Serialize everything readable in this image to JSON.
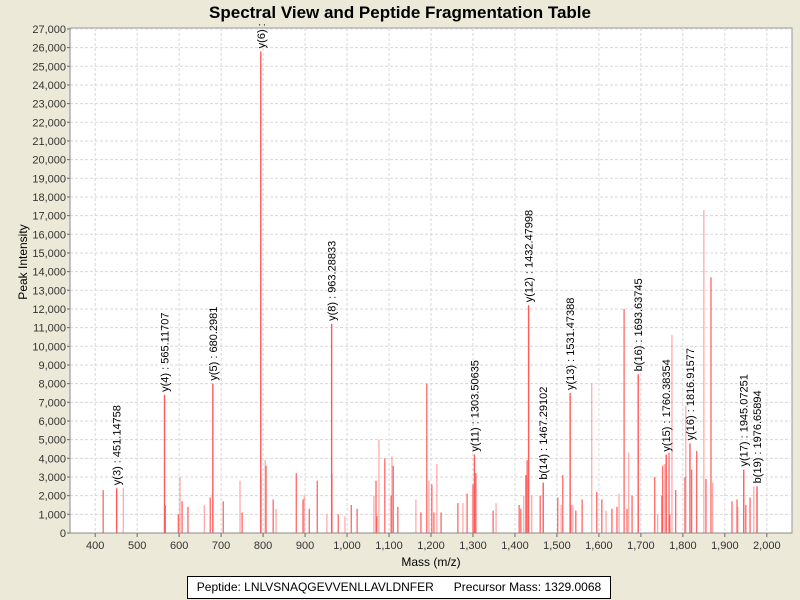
{
  "chart_data": {
    "type": "bar",
    "title": "Spectral View and Peptide Fragmentation Table",
    "xlabel": "Mass (m/z)",
    "ylabel": "Peak Intensity",
    "xlim": [
      340,
      2060
    ],
    "ylim": [
      0,
      27050
    ],
    "xticks": [
      400,
      500,
      600,
      700,
      800,
      900,
      1000,
      1100,
      1200,
      1300,
      1400,
      1500,
      1600,
      1700,
      1800,
      1900,
      2000
    ],
    "xtick_labels": [
      "400",
      "500",
      "600",
      "700",
      "800",
      "900",
      "1,000",
      "1,100",
      "1,200",
      "1,300",
      "1,400",
      "1,500",
      "1,600",
      "1,700",
      "1,800",
      "1,900",
      "2,000"
    ],
    "yticks": [
      0,
      1000,
      2000,
      3000,
      4000,
      5000,
      6000,
      7000,
      8000,
      9000,
      10000,
      11000,
      12000,
      13000,
      14000,
      15000,
      16000,
      17000,
      18000,
      19000,
      20000,
      21000,
      22000,
      23000,
      24000,
      25000,
      26000,
      27000
    ],
    "ytick_labels": [
      "0",
      "1,000",
      "2,000",
      "3,000",
      "4,000",
      "5,000",
      "6,000",
      "7,000",
      "8,000",
      "9,000",
      "10,000",
      "11,000",
      "12,000",
      "13,000",
      "14,000",
      "15,000",
      "16,000",
      "17,000",
      "18,000",
      "19,000",
      "20,000",
      "21,000",
      "22,000",
      "23,000",
      "24,000",
      "25,000",
      "26,000",
      "27,000"
    ],
    "grid": true,
    "bar_color": "#ff5a5a",
    "peaks": [
      [
        419,
        2300
      ],
      [
        467,
        2400
      ],
      [
        567,
        1500
      ],
      [
        598,
        1000
      ],
      [
        602,
        3000
      ],
      [
        607,
        1700
      ],
      [
        621,
        1400
      ],
      [
        660,
        1500
      ],
      [
        674,
        1900
      ],
      [
        705,
        1700
      ],
      [
        745,
        2800
      ],
      [
        750,
        1100
      ],
      [
        795,
        2900
      ],
      [
        805,
        3900
      ],
      [
        807,
        3600
      ],
      [
        824,
        1800
      ],
      [
        831,
        1300
      ],
      [
        879,
        3200
      ],
      [
        895,
        1800
      ],
      [
        898,
        2000
      ],
      [
        910,
        1300
      ],
      [
        929,
        2800
      ],
      [
        952,
        1000
      ],
      [
        964,
        3200
      ],
      [
        979,
        1000
      ],
      [
        995,
        900
      ],
      [
        1010,
        1500
      ],
      [
        1024,
        1300
      ],
      [
        1064,
        2000
      ],
      [
        1069,
        2800
      ],
      [
        1071,
        900
      ],
      [
        1076,
        5000
      ],
      [
        1090,
        4000
      ],
      [
        1105,
        2000
      ],
      [
        1107,
        4100
      ],
      [
        1110,
        3600
      ],
      [
        1121,
        1400
      ],
      [
        1164,
        1800
      ],
      [
        1176,
        1100
      ],
      [
        1190,
        8000
      ],
      [
        1195,
        2800
      ],
      [
        1202,
        2600
      ],
      [
        1207,
        1100
      ],
      [
        1214,
        3700
      ],
      [
        1224,
        1100
      ],
      [
        1264,
        1600
      ],
      [
        1276,
        1600
      ],
      [
        1286,
        2100
      ],
      [
        1300,
        2600
      ],
      [
        1305,
        3200
      ],
      [
        1307,
        3200
      ],
      [
        1348,
        1200
      ],
      [
        1355,
        1600
      ],
      [
        1410,
        1500
      ],
      [
        1414,
        1300
      ],
      [
        1421,
        2000
      ],
      [
        1426,
        3100
      ],
      [
        1429,
        3900
      ],
      [
        1440,
        2000
      ],
      [
        1460,
        2000
      ],
      [
        1502,
        1900
      ],
      [
        1510,
        1500
      ],
      [
        1514,
        3100
      ],
      [
        1533,
        1500
      ],
      [
        1538,
        1500
      ],
      [
        1545,
        1200
      ],
      [
        1560,
        1800
      ],
      [
        1583,
        8000
      ],
      [
        1595,
        2200
      ],
      [
        1607,
        1800
      ],
      [
        1617,
        1200
      ],
      [
        1631,
        1300
      ],
      [
        1643,
        1400
      ],
      [
        1648,
        2100
      ],
      [
        1660,
        12000
      ],
      [
        1667,
        1300
      ],
      [
        1671,
        4300
      ],
      [
        1679,
        2000
      ],
      [
        1733,
        3000
      ],
      [
        1740,
        1000
      ],
      [
        1750,
        2000
      ],
      [
        1752,
        3600
      ],
      [
        1757,
        3700
      ],
      [
        1767,
        4300
      ],
      [
        1769,
        1000
      ],
      [
        1774,
        10600
      ],
      [
        1783,
        2300
      ],
      [
        1805,
        3000
      ],
      [
        1807,
        6800
      ],
      [
        1821,
        3400
      ],
      [
        1833,
        4400
      ],
      [
        1850,
        17300
      ],
      [
        1855,
        2900
      ],
      [
        1867,
        13700
      ],
      [
        1871,
        2700
      ],
      [
        1917,
        1700
      ],
      [
        1929,
        1800
      ],
      [
        1931,
        1400
      ],
      [
        1950,
        1500
      ],
      [
        1960,
        1900
      ],
      [
        1969,
        2500
      ]
    ],
    "annotated_peaks": [
      {
        "mz": 451.15,
        "intensity": 2400,
        "label": "y(3) : 451.14758"
      },
      {
        "mz": 565.12,
        "intensity": 7400,
        "label": "y(4) : 565.11707"
      },
      {
        "mz": 680.3,
        "intensity": 8000,
        "label": "y(5) : 680.2981"
      },
      {
        "mz": 794.5,
        "intensity": 25800,
        "label": "y(6) :"
      },
      {
        "mz": 963.29,
        "intensity": 11200,
        "label": "y(8) : 963.28833"
      },
      {
        "mz": 1303.51,
        "intensity": 4200,
        "label": "y(11) : 1303.50635"
      },
      {
        "mz": 1432.48,
        "intensity": 12200,
        "label": "y(12) : 1432.47998"
      },
      {
        "mz": 1467.29,
        "intensity": 2700,
        "label": "b(14) : 1467.29102"
      },
      {
        "mz": 1531.47,
        "intensity": 7500,
        "label": "y(13) : 1531.47388"
      },
      {
        "mz": 1693.64,
        "intensity": 8500,
        "label": "b(16) : 1693.63745"
      },
      {
        "mz": 1760.38,
        "intensity": 4200,
        "label": "y(15) : 1760.38354"
      },
      {
        "mz": 1816.92,
        "intensity": 4800,
        "label": "y(16) : 1816.91577"
      },
      {
        "mz": 1945.07,
        "intensity": 3400,
        "label": "y(17) : 1945.07251"
      },
      {
        "mz": 1976.66,
        "intensity": 2500,
        "label": "b(19) : 1976.65894"
      }
    ]
  },
  "legend": {
    "text": "Peptide: LNLVSNAQGEVVENLLAVLDNFER      Precursor Mass: 1329.0068"
  }
}
